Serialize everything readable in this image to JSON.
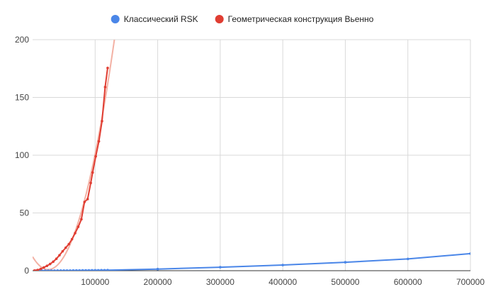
{
  "chart_data": {
    "type": "line",
    "legend_position": "top",
    "grid": true,
    "xlim": [
      0,
      700000
    ],
    "ylim": [
      0,
      200
    ],
    "x_ticks": [
      100000,
      200000,
      300000,
      400000,
      500000,
      600000,
      700000
    ],
    "y_ticks": [
      0,
      50,
      100,
      150,
      200
    ],
    "series": [
      {
        "name": "Классический RSK",
        "color": "#4a86e8",
        "points": [
          [
            5000,
            0.01
          ],
          [
            10000,
            0.02
          ],
          [
            15000,
            0.03
          ],
          [
            20000,
            0.04
          ],
          [
            25000,
            0.05
          ],
          [
            30000,
            0.06
          ],
          [
            35000,
            0.07
          ],
          [
            40000,
            0.09
          ],
          [
            45000,
            0.1
          ],
          [
            50000,
            0.12
          ],
          [
            55000,
            0.14
          ],
          [
            60000,
            0.16
          ],
          [
            65000,
            0.18
          ],
          [
            70000,
            0.2
          ],
          [
            75000,
            0.22
          ],
          [
            80000,
            0.25
          ],
          [
            85000,
            0.27
          ],
          [
            90000,
            0.3
          ],
          [
            95000,
            0.32
          ],
          [
            100000,
            0.35
          ],
          [
            105000,
            0.38
          ],
          [
            110000,
            0.41
          ],
          [
            115000,
            0.44
          ],
          [
            120000,
            0.47
          ],
          [
            200000,
            1.4
          ],
          [
            300000,
            3.0
          ],
          [
            400000,
            4.9
          ],
          [
            500000,
            7.3
          ],
          [
            600000,
            10.2
          ],
          [
            700000,
            14.8
          ]
        ]
      },
      {
        "name": "Геометрическая конструкция Вьенно",
        "color": "#e03d32",
        "trend_color": "#f2a89a",
        "points": [
          [
            3000,
            0.1
          ],
          [
            8000,
            0.6
          ],
          [
            13000,
            1.5
          ],
          [
            18000,
            2.8
          ],
          [
            23000,
            4.2
          ],
          [
            28000,
            5.8
          ],
          [
            33000,
            7.8
          ],
          [
            38000,
            10.3
          ],
          [
            43000,
            13.4
          ],
          [
            48000,
            16.8
          ],
          [
            53000,
            19.9
          ],
          [
            58000,
            23.0
          ],
          [
            63000,
            27.3
          ],
          [
            68000,
            32.5
          ],
          [
            73000,
            38.0
          ],
          [
            78000,
            44.5
          ],
          [
            83000,
            59.5
          ],
          [
            88000,
            62.0
          ],
          [
            93000,
            76.0
          ],
          [
            96000,
            85.0
          ],
          [
            101000,
            99.0
          ],
          [
            106000,
            112.0
          ],
          [
            111000,
            129.5
          ],
          [
            116000,
            159.0
          ],
          [
            120000,
            175.5
          ]
        ]
      }
    ]
  }
}
